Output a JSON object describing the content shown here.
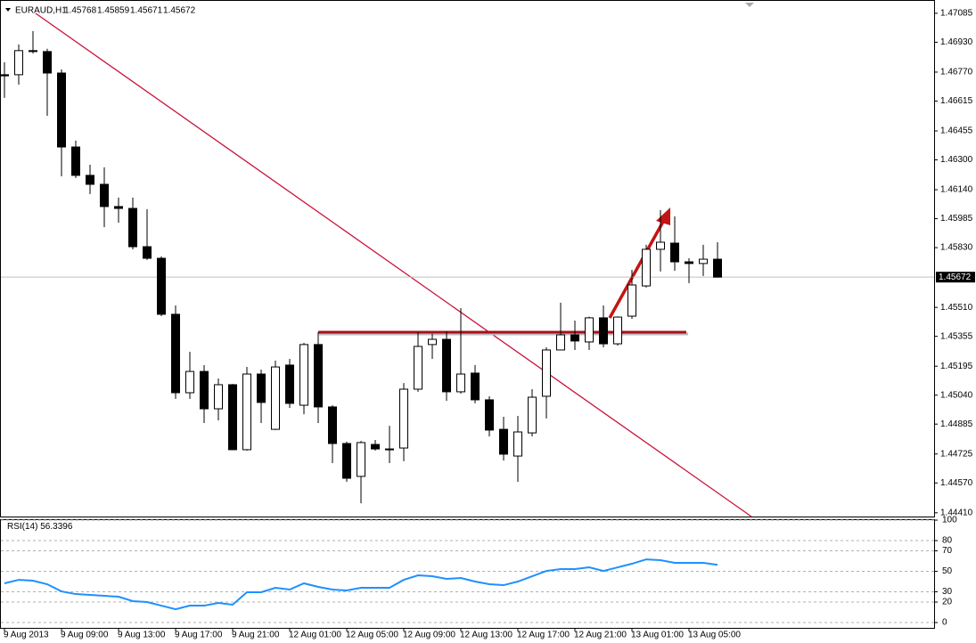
{
  "chart_data": [
    {
      "type": "candlestick",
      "title": "EURAUD,H1",
      "open": [
        1.46756,
        1.46756,
        1.46885,
        1.4688,
        1.46765,
        1.46369,
        1.46217,
        1.46169,
        1.4605,
        1.4604,
        1.45835,
        1.45773,
        1.45473,
        1.45053,
        1.45167,
        1.44967,
        1.45096,
        1.44748,
        1.45153,
        1.44857,
        1.45201,
        1.44986,
        1.45311,
        1.44977,
        1.44781,
        1.44605,
        1.44776,
        1.44752,
        1.44757,
        1.45072,
        1.45311,
        1.45339,
        1.45058,
        1.45158,
        1.45015,
        1.44857,
        1.44714,
        1.44838,
        1.45034,
        1.45282,
        1.45363,
        1.45325,
        1.45454,
        1.45315,
        1.45463,
        1.45625,
        1.45821,
        1.45854,
        1.45754,
        1.45745,
        1.45768
      ],
      "high": [
        1.46823,
        1.46918,
        1.4699,
        1.46895,
        1.46784,
        1.46403,
        1.46274,
        1.4626,
        1.46098,
        1.46098,
        1.46036,
        1.45783,
        1.4552,
        1.45272,
        1.45201,
        1.45129,
        1.451,
        1.45191,
        1.45177,
        1.45225,
        1.45234,
        1.4532,
        1.45377,
        1.44986,
        1.44791,
        1.44795,
        1.448,
        1.44876,
        1.45105,
        1.45377,
        1.45368,
        1.45382,
        1.45506,
        1.45201,
        1.45034,
        1.44924,
        1.44929,
        1.45072,
        1.45296,
        1.45535,
        1.45439,
        1.4546,
        1.4552,
        1.45462,
        1.45711,
        1.45845,
        1.46031,
        1.45997,
        1.45773,
        1.45845,
        1.45859
      ],
      "low": [
        1.46632,
        1.46703,
        1.4687,
        1.46536,
        1.46212,
        1.46203,
        1.46117,
        1.4594,
        1.45964,
        1.45821,
        1.45764,
        1.45463,
        1.4502,
        1.4502,
        1.44891,
        1.44905,
        1.44745,
        1.44743,
        1.44891,
        1.44853,
        1.44972,
        1.44938,
        1.44891,
        1.44676,
        1.44576,
        1.44461,
        1.44743,
        1.44676,
        1.44686,
        1.45058,
        1.45234,
        1.4501,
        1.45048,
        1.44996,
        1.44819,
        1.4469,
        1.44576,
        1.44819,
        1.44915,
        1.4528,
        1.45282,
        1.45282,
        1.45296,
        1.45305,
        1.45449,
        1.45616,
        1.45702,
        1.45706,
        1.4564,
        1.45678,
        1.45671
      ],
      "close": [
        1.4675,
        1.46885,
        1.4688,
        1.46765,
        1.46369,
        1.46217,
        1.46169,
        1.4605,
        1.4604,
        1.45835,
        1.45773,
        1.45473,
        1.45053,
        1.45167,
        1.44967,
        1.45096,
        1.44748,
        1.45153,
        1.45001,
        1.45191,
        1.44996,
        1.45311,
        1.44977,
        1.44781,
        1.44595,
        1.44786,
        1.44752,
        1.44748,
        1.45072,
        1.45301,
        1.45339,
        1.45058,
        1.45153,
        1.45015,
        1.44853,
        1.44724,
        1.44843,
        1.45029,
        1.45282,
        1.45363,
        1.4533,
        1.45454,
        1.45315,
        1.45458,
        1.4563,
        1.45821,
        1.45859,
        1.45754,
        1.45745,
        1.45768,
        1.45672
      ],
      "up_color": "#ffffff",
      "down_color": "#000000",
      "outline_color": "#000000",
      "last_price": 1.45672,
      "ylim": [
        1.4439,
        1.47137
      ],
      "yticks": [
        1.47085,
        {
          "value": 1.4693,
          "label": "1.46930"
        },
        {
          "value": 1.4677,
          "label": "1.46770"
        },
        1.46615,
        1.46455,
        {
          "value": 1.463,
          "label": "1.46300"
        },
        {
          "value": 1.4614,
          "label": "1.46140"
        },
        1.45985,
        {
          "value": 1.4583,
          "label": "1.45830"
        },
        {
          "value": 1.4551,
          "label": "1.45510"
        },
        1.45355,
        1.45195,
        {
          "value": 1.4504,
          "label": "1.45040"
        },
        1.44885,
        1.44725,
        {
          "value": 1.4457,
          "label": "1.44570"
        },
        {
          "value": 1.4441,
          "label": "1.44410"
        }
      ]
    },
    {
      "type": "line",
      "title": "RSI(14)",
      "categories": [
        "9 Aug 2013",
        null,
        null,
        null,
        "9 Aug 09:00",
        null,
        null,
        null,
        "9 Aug 13:00",
        null,
        null,
        null,
        "9 Aug 17:00",
        null,
        null,
        null,
        "9 Aug 21:00",
        null,
        null,
        null,
        "12 Aug 01:00",
        null,
        null,
        null,
        "12 Aug 05:00",
        null,
        null,
        null,
        "12 Aug 09:00",
        null,
        null,
        null,
        "12 Aug 13:00",
        null,
        null,
        null,
        "12 Aug 17:00",
        null,
        null,
        null,
        "12 Aug 21:00",
        null,
        null,
        null,
        "13 Aug 01:00",
        null,
        null,
        null,
        "13 Aug 05:00",
        null,
        null
      ],
      "series": [
        {
          "name": "RSI(14)",
          "color": "#1e90ff",
          "values": [
            38.3,
            41.7,
            40.9,
            37.4,
            30.4,
            27.8,
            27.0,
            26.1,
            25.2,
            20.9,
            20.0,
            16.5,
            13.0,
            16.5,
            16.5,
            19.1,
            17.4,
            29.6,
            29.6,
            33.9,
            32.2,
            38.3,
            34.8,
            32.2,
            31.3,
            33.9,
            33.9,
            33.9,
            41.7,
            46.1,
            45.2,
            42.6,
            43.5,
            40.0,
            37.4,
            36.5,
            40.0,
            45.2,
            50.4,
            52.2,
            52.2,
            53.9,
            50.4,
            53.9,
            57.4,
            61.7,
            60.9,
            58.3,
            58.3,
            58.3,
            56.3396
          ]
        }
      ],
      "ylim": [
        -5.2,
        100.9
      ],
      "yticks": [
        100,
        80,
        70,
        50,
        30,
        20,
        0
      ],
      "grid": true
    }
  ]
}
